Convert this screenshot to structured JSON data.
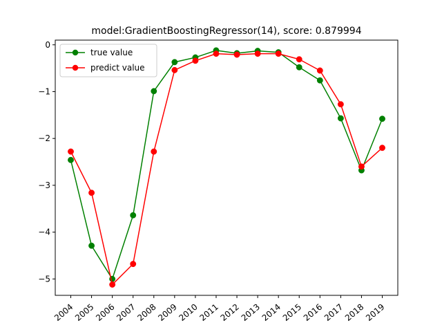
{
  "chart_data": {
    "type": "line",
    "title": "model:GradientBoostingRegressor(14), score: 0.879994",
    "xlabel": "",
    "ylabel": "",
    "categories": [
      "2004",
      "2005",
      "2006",
      "2007",
      "2008",
      "2009",
      "2010",
      "2011",
      "2012",
      "2013",
      "2014",
      "2015",
      "2016",
      "2017",
      "2018",
      "2019"
    ],
    "ylim": [
      -5.35,
      0.1
    ],
    "yticks": [
      0,
      -1,
      -2,
      -3,
      -4,
      -5
    ],
    "ytick_labels": [
      "0",
      "−1",
      "−2",
      "−3",
      "−4",
      "−5"
    ],
    "grid": false,
    "legend_position": "top-left",
    "series": [
      {
        "name": "true value",
        "color": "#008000",
        "marker": "circle",
        "values": [
          -2.46,
          -4.29,
          -5.0,
          -3.64,
          -0.99,
          -0.37,
          -0.27,
          -0.12,
          -0.18,
          -0.13,
          -0.16,
          -0.48,
          -0.76,
          -1.57,
          -2.68,
          -1.58
        ]
      },
      {
        "name": "predict value",
        "color": "#ff0000",
        "marker": "circle",
        "values": [
          -2.28,
          -3.16,
          -5.12,
          -4.68,
          -2.28,
          -0.54,
          -0.34,
          -0.19,
          -0.21,
          -0.19,
          -0.19,
          -0.31,
          -0.55,
          -1.27,
          -2.6,
          -2.2
        ]
      }
    ]
  }
}
